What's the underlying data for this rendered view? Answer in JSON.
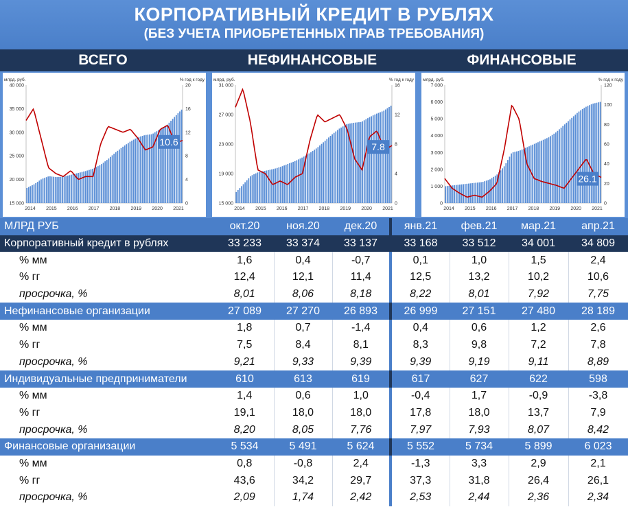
{
  "title": "КОРПОРАТИВНЫЙ КРЕДИТ В РУБЛЯХ",
  "subtitle": "(БЕЗ УЧЕТА ПРИОБРЕТЕННЫХ ПРАВ ТРЕБОВАНИЯ)",
  "sections": [
    "ВСЕГО",
    "НЕФИНАНСОВЫЕ",
    "ФИНАНСОВЫЕ"
  ],
  "colors": {
    "accent": "#4a7fc9",
    "dark": "#1f3658",
    "bar": "#5b8fd6",
    "line": "#c00000",
    "positive": "#1f6fb4",
    "negative": "#c00000"
  },
  "chart_data": [
    {
      "type": "bar",
      "section": "ВСЕГО",
      "ylabel_left": "млрд. руб.",
      "ylabel_right": "% год к году",
      "x_ticks": [
        "2014",
        "2015",
        "2016",
        "2017",
        "2018",
        "2019",
        "2020",
        "2021"
      ],
      "y_left_ticks": [
        "40 000",
        "35 000",
        "30 000",
        "25 000",
        "20 000",
        "15 000"
      ],
      "y_right_ticks": [
        "20",
        "16",
        "12",
        "8",
        "4",
        "0"
      ],
      "y_left_range": [
        15000,
        40000
      ],
      "y_right_range": [
        0,
        20
      ],
      "series": [
        {
          "values": [
            18200,
            19000,
            20100,
            20700,
            20500,
            20600,
            21000,
            21400,
            21800,
            22300,
            23100,
            24300,
            25700,
            26900,
            28000,
            28900,
            29400,
            29600,
            30600,
            31500,
            33200,
            34800
          ]
        },
        {
          "values": [
            14.0,
            16.0,
            11.0,
            6.0,
            5.0,
            4.5,
            5.5,
            4.0,
            4.5,
            4.5,
            10.0,
            13.0,
            12.5,
            12.0,
            12.5,
            11.0,
            9.0,
            9.5,
            12.5,
            13.2,
            10.2,
            10.6
          ]
        }
      ],
      "badge": "10.6"
    },
    {
      "type": "bar",
      "section": "НЕФИНАНСОВЫЕ",
      "ylabel_left": "млрд. руб.",
      "ylabel_right": "% год к году",
      "x_ticks": [
        "2014",
        "2015",
        "2016",
        "2017",
        "2018",
        "2019",
        "2020",
        "2021"
      ],
      "y_left_ticks": [
        "31 000",
        "27 000",
        "23 000",
        "19 000",
        "15 000"
      ],
      "y_right_ticks": [
        "16",
        "12",
        "8",
        "4",
        "0"
      ],
      "y_left_range": [
        15000,
        31000
      ],
      "y_right_range": [
        0,
        16
      ],
      "series": [
        {
          "values": [
            16500,
            17600,
            18700,
            19200,
            19400,
            19600,
            19900,
            20300,
            20700,
            21200,
            21800,
            22500,
            23400,
            24300,
            25100,
            25700,
            25900,
            26000,
            26600,
            27100,
            27500,
            28200
          ]
        },
        {
          "values": [
            13.0,
            15.5,
            11.0,
            4.5,
            4.0,
            2.5,
            3.0,
            2.5,
            3.5,
            4.0,
            8.5,
            12.0,
            11.0,
            11.5,
            12.0,
            10.0,
            6.0,
            4.5,
            9.0,
            9.8,
            7.2,
            7.8
          ]
        }
      ],
      "badge": "7.8"
    },
    {
      "type": "bar",
      "section": "ФИНАНСОВЫЕ",
      "ylabel_left": "млрд. руб.",
      "ylabel_right": "% год к году",
      "x_ticks": [
        "2014",
        "2015",
        "2016",
        "2017",
        "2018",
        "2019",
        "2020",
        "2021"
      ],
      "y_left_ticks": [
        "7 000",
        "6 000",
        "5 000",
        "4 000",
        "3 000",
        "2 000",
        "1 000",
        "0"
      ],
      "y_right_ticks": [
        "120",
        "100",
        "80",
        "60",
        "40",
        "20",
        "0"
      ],
      "y_left_range": [
        0,
        7000
      ],
      "y_right_range": [
        0,
        120
      ],
      "series": [
        {
          "values": [
            1000,
            1050,
            1100,
            1150,
            1200,
            1250,
            1400,
            1700,
            2200,
            3000,
            3100,
            3300,
            3500,
            3700,
            3900,
            4200,
            4600,
            5000,
            5400,
            5700,
            5900,
            6000
          ]
        },
        {
          "values": [
            25,
            15,
            10,
            6,
            8,
            6,
            12,
            20,
            55,
            100,
            85,
            40,
            25,
            22,
            20,
            18,
            15,
            25,
            35,
            45,
            30,
            26.1
          ]
        }
      ],
      "badge": "26.1"
    }
  ],
  "table": {
    "header": [
      "МЛРД РУБ",
      "окт.20",
      "ноя.20",
      "дек.20",
      "янв.21",
      "фев.21",
      "мар.21",
      "апр.21"
    ],
    "groups": [
      {
        "name": "Корпоративный кредит в рублях",
        "style": "dark",
        "values": [
          "33 233",
          "33 374",
          "33 137",
          "33 168",
          "33 512",
          "34 001",
          "34 809"
        ],
        "rows": [
          {
            "label": "% мм",
            "kind": "mm",
            "values": [
              "1,6",
              "0,4",
              "-0,7",
              "0,1",
              "1,0",
              "1,5",
              "2,4"
            ]
          },
          {
            "label": "% гг",
            "kind": "yy",
            "values": [
              "12,4",
              "12,1",
              "11,4",
              "12,5",
              "13,2",
              "10,2",
              "10,6"
            ]
          },
          {
            "label": "просрочка, %",
            "kind": "npl",
            "values": [
              "8,01",
              "8,06",
              "8,18",
              "8,22",
              "8,01",
              "7,92",
              "7,75"
            ]
          }
        ]
      },
      {
        "name": "Нефинансовые организации",
        "style": "blue",
        "values": [
          "27 089",
          "27 270",
          "26 893",
          "26 999",
          "27 151",
          "27 480",
          "28 189"
        ],
        "rows": [
          {
            "label": "% мм",
            "kind": "mm",
            "values": [
              "1,8",
              "0,7",
              "-1,4",
              "0,4",
              "0,6",
              "1,2",
              "2,6"
            ]
          },
          {
            "label": "% гг",
            "kind": "yy",
            "values": [
              "7,5",
              "8,4",
              "8,1",
              "8,3",
              "9,8",
              "7,2",
              "7,8"
            ]
          },
          {
            "label": "просрочка, %",
            "kind": "npl",
            "values": [
              "9,21",
              "9,33",
              "9,39",
              "9,39",
              "9,19",
              "9,11",
              "8,89"
            ]
          }
        ]
      },
      {
        "name": "Индивидуальные предприниматели",
        "style": "blue",
        "values": [
          "610",
          "613",
          "619",
          "617",
          "627",
          "622",
          "598"
        ],
        "rows": [
          {
            "label": "% мм",
            "kind": "mm",
            "values": [
              "1,4",
              "0,6",
              "1,0",
              "-0,4",
              "1,7",
              "-0,9",
              "-3,8"
            ]
          },
          {
            "label": "% гг",
            "kind": "yy",
            "values": [
              "19,1",
              "18,0",
              "18,0",
              "17,8",
              "18,0",
              "13,7",
              "7,9"
            ]
          },
          {
            "label": "просрочка, %",
            "kind": "npl",
            "values": [
              "8,20",
              "8,05",
              "7,76",
              "7,97",
              "7,93",
              "8,07",
              "8,42"
            ]
          }
        ]
      },
      {
        "name": "Финансовые организации",
        "style": "blue",
        "values": [
          "5 534",
          "5 491",
          "5 624",
          "5 552",
          "5 734",
          "5 899",
          "6 023"
        ],
        "rows": [
          {
            "label": "% мм",
            "kind": "mm",
            "values": [
              "0,8",
              "-0,8",
              "2,4",
              "-1,3",
              "3,3",
              "2,9",
              "2,1"
            ]
          },
          {
            "label": "% гг",
            "kind": "yy",
            "values": [
              "43,6",
              "34,2",
              "29,7",
              "37,3",
              "31,8",
              "26,4",
              "26,1"
            ]
          },
          {
            "label": "просрочка, %",
            "kind": "npl",
            "values": [
              "2,09",
              "1,74",
              "2,42",
              "2,53",
              "2,44",
              "2,36",
              "2,34"
            ]
          }
        ]
      }
    ]
  }
}
